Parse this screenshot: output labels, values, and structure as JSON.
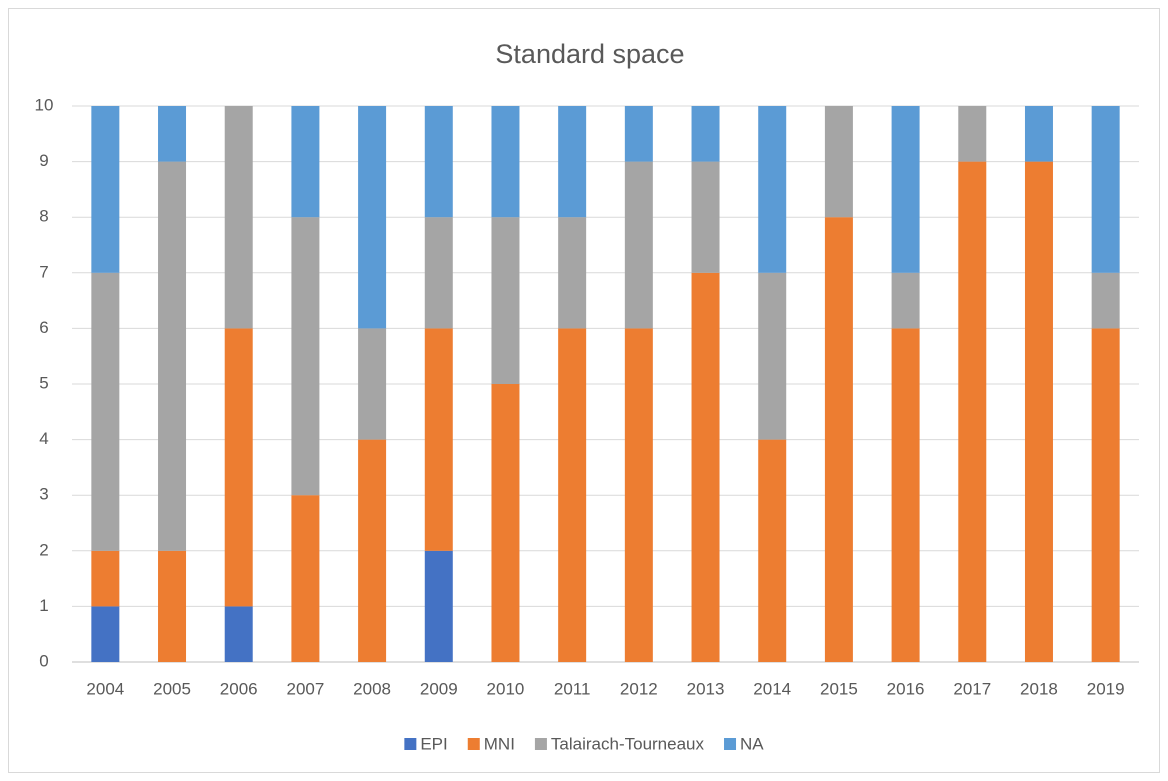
{
  "chart_data": {
    "type": "stacked_bar",
    "title": "Standard space",
    "categories": [
      "2004",
      "2005",
      "2006",
      "2007",
      "2008",
      "2009",
      "2010",
      "2011",
      "2012",
      "2013",
      "2014",
      "2015",
      "2016",
      "2017",
      "2018",
      "2019"
    ],
    "series": [
      {
        "name": "EPI",
        "color": "#4472c4",
        "values": [
          1,
          0,
          1,
          0,
          0,
          2,
          0,
          0,
          0,
          0,
          0,
          0,
          0,
          0,
          0,
          0
        ]
      },
      {
        "name": "MNI",
        "color": "#ed7d31",
        "values": [
          1,
          2,
          5,
          3,
          4,
          4,
          5,
          6,
          6,
          7,
          4,
          8,
          6,
          9,
          9,
          6
        ]
      },
      {
        "name": "Talairach-Tourneaux",
        "color": "#a5a5a5",
        "values": [
          5,
          7,
          4,
          5,
          2,
          2,
          3,
          2,
          3,
          2,
          3,
          2,
          1,
          1,
          0,
          1
        ]
      },
      {
        "name": "NA",
        "color": "#5b9bd5",
        "values": [
          3,
          1,
          0,
          2,
          4,
          2,
          2,
          2,
          1,
          1,
          3,
          0,
          3,
          0,
          1,
          3
        ]
      }
    ],
    "ylim": [
      0,
      10
    ],
    "yticks": [
      0,
      1,
      2,
      3,
      4,
      5,
      6,
      7,
      8,
      9,
      10
    ],
    "grid": true,
    "legend": "bottom"
  }
}
